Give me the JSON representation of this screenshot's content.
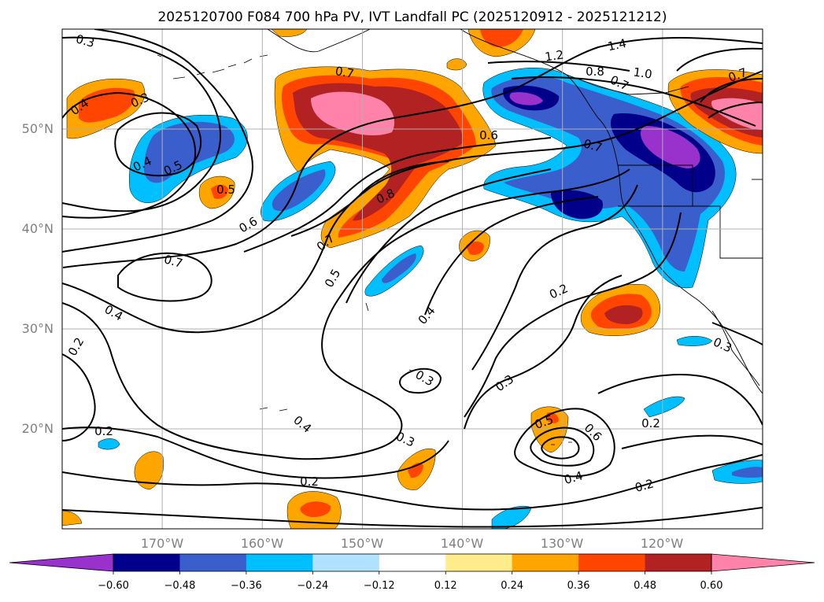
{
  "title": "2025120700 F084 700 hPa PV, IVT Landfall PC (2025120912 - 2025121212)",
  "map": {
    "lat_labels": [
      "50°N",
      "40°N",
      "30°N",
      "20°N"
    ],
    "lon_labels": [
      "170°W",
      "160°W",
      "150°W",
      "140°W",
      "130°W",
      "120°W"
    ],
    "grid": true,
    "coastlines": true,
    "extent": {
      "lon_min": -180,
      "lon_max": -110,
      "lat_min": 10,
      "lat_max": 60
    }
  },
  "pv_contours": {
    "units": "PVU",
    "labels": [
      "0.3",
      "1.2",
      "1.4",
      "1.0",
      "0.8",
      "0.7",
      "0.7",
      "0.4",
      "0.3",
      "0.4",
      "0.5",
      "0.5",
      "0.7",
      "0.6",
      "0.6",
      "0.8",
      "0.7",
      "0.7",
      "0.5",
      "0.4",
      "0.4",
      "0.2",
      "0.3",
      "0.3",
      "0.3",
      "0.2",
      "0.2",
      "0.4",
      "0.5",
      "0.6",
      "0.4",
      "0.2",
      "0.2",
      "0.3",
      "0.2",
      "0.7"
    ]
  },
  "ivt_pc_fill": {
    "colorbar": {
      "extend": "both",
      "tick_labels": [
        "−0.60",
        "−0.48",
        "−0.36",
        "−0.24",
        "−0.12",
        "0.12",
        "0.24",
        "0.36",
        "0.48",
        "0.60"
      ],
      "colors": [
        "#9932cc",
        "#00008b",
        "#3a5fcd",
        "#00bfff",
        "#b0e2ff",
        "#ffffff",
        "#ffec8b",
        "#ffa500",
        "#ff4500",
        "#b22222",
        "#ff82ab",
        "#ff82ab"
      ],
      "min_color": "#9932cc",
      "max_color": "#ff82ab"
    }
  }
}
